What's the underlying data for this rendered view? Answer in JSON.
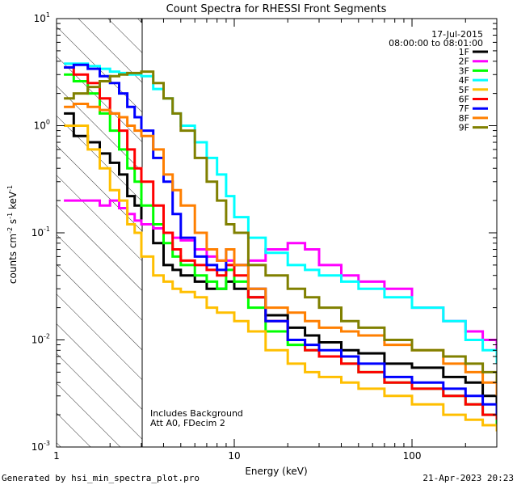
{
  "chart_data": {
    "type": "line",
    "title": "Count Spectra for RHESSI Front Segments",
    "xlabel": "Energy (keV)",
    "ylabel": "counts cm^-2 s^-1 keV^-1",
    "ylabel_parts": {
      "base1": "counts cm",
      "exp1": "-2",
      "base2": " s",
      "exp2": "-1",
      "base3": " keV",
      "exp3": "-1"
    },
    "xscale": "log",
    "yscale": "log",
    "xlim": [
      1,
      300
    ],
    "ylim": [
      0.001,
      10
    ],
    "x_ticks": [
      {
        "value": 1,
        "label": "1"
      },
      {
        "value": 10,
        "label": "10"
      },
      {
        "value": 100,
        "label": "100"
      }
    ],
    "y_ticks": [
      {
        "value": 0.001,
        "base": "10",
        "exp": "-3"
      },
      {
        "value": 0.01,
        "base": "10",
        "exp": "-2"
      },
      {
        "value": 0.1,
        "base": "10",
        "exp": "-1"
      },
      {
        "value": 1,
        "base": "10",
        "exp": "0"
      },
      {
        "value": 10,
        "base": "10",
        "exp": "1"
      }
    ],
    "excluded_region_max_keV": 3,
    "date_label": "17-Jul-2015",
    "time_label": "08:00:00 to 08:01:00",
    "annotations": [
      "Includes Background",
      "Att A0, FDecim 2"
    ],
    "x": [
      1.1,
      1.25,
      1.5,
      1.75,
      2,
      2.25,
      2.5,
      2.75,
      3,
      3.5,
      4,
      4.5,
      5,
      6,
      7,
      8,
      9,
      10,
      12,
      15,
      20,
      25,
      30,
      40,
      50,
      70,
      100,
      150,
      200,
      250,
      300
    ],
    "series": [
      {
        "name": "1F",
        "color": "#000000",
        "values": [
          1.3,
          0.8,
          0.7,
          0.55,
          0.45,
          0.35,
          0.22,
          0.18,
          0.12,
          0.08,
          0.05,
          0.045,
          0.04,
          0.035,
          0.03,
          0.03,
          0.035,
          0.03,
          0.025,
          0.017,
          0.013,
          0.011,
          0.0095,
          0.008,
          0.0075,
          0.006,
          0.0055,
          0.0045,
          0.004,
          0.003,
          0.0018
        ]
      },
      {
        "name": "2F",
        "color": "#ff00ff",
        "values": [
          0.2,
          0.2,
          0.2,
          0.18,
          0.2,
          0.17,
          0.15,
          0.13,
          0.12,
          0.11,
          0.1,
          0.09,
          0.085,
          0.07,
          0.06,
          0.055,
          0.055,
          0.05,
          0.055,
          0.07,
          0.08,
          0.07,
          0.05,
          0.04,
          0.035,
          0.03,
          0.02,
          0.015,
          0.012,
          0.01,
          0.008
        ]
      },
      {
        "name": "3F",
        "color": "#00ff00",
        "values": [
          3.0,
          2.6,
          2.0,
          1.3,
          0.9,
          0.6,
          0.4,
          0.3,
          0.18,
          0.12,
          0.08,
          0.06,
          0.05,
          0.04,
          0.035,
          0.03,
          0.045,
          0.035,
          0.02,
          0.012,
          0.009,
          0.008,
          0.007,
          0.006,
          0.005,
          0.004,
          0.0035,
          0.003,
          0.0025,
          0.002,
          0.0015
        ]
      },
      {
        "name": "4F",
        "color": "#00ffff",
        "values": [
          3.8,
          3.8,
          3.6,
          3.4,
          3.2,
          3.1,
          3.0,
          3.0,
          2.9,
          2.2,
          1.8,
          1.3,
          1.0,
          0.7,
          0.5,
          0.35,
          0.22,
          0.14,
          0.09,
          0.065,
          0.05,
          0.045,
          0.04,
          0.035,
          0.03,
          0.025,
          0.02,
          0.015,
          0.01,
          0.008,
          0.006
        ]
      },
      {
        "name": "5F",
        "color": "#ffbf00",
        "values": [
          1.0,
          1.0,
          0.6,
          0.4,
          0.25,
          0.2,
          0.12,
          0.1,
          0.06,
          0.04,
          0.035,
          0.03,
          0.028,
          0.025,
          0.02,
          0.018,
          0.018,
          0.015,
          0.012,
          0.008,
          0.006,
          0.005,
          0.0045,
          0.004,
          0.0035,
          0.003,
          0.0025,
          0.002,
          0.0018,
          0.0016,
          0.0014
        ]
      },
      {
        "name": "6F",
        "color": "#ff0000",
        "values": [
          3.5,
          3.0,
          2.5,
          1.8,
          1.3,
          0.9,
          0.6,
          0.4,
          0.3,
          0.18,
          0.1,
          0.07,
          0.055,
          0.05,
          0.045,
          0.04,
          0.05,
          0.04,
          0.025,
          0.015,
          0.01,
          0.008,
          0.007,
          0.006,
          0.005,
          0.004,
          0.0035,
          0.003,
          0.0025,
          0.002,
          0.0018
        ]
      },
      {
        "name": "7F",
        "color": "#0000ff",
        "values": [
          3.5,
          3.7,
          3.4,
          2.9,
          2.5,
          2.0,
          1.5,
          1.2,
          0.9,
          0.5,
          0.3,
          0.15,
          0.09,
          0.06,
          0.05,
          0.045,
          0.07,
          0.05,
          0.03,
          0.015,
          0.01,
          0.009,
          0.008,
          0.007,
          0.006,
          0.0045,
          0.004,
          0.0035,
          0.003,
          0.0025,
          0.002
        ]
      },
      {
        "name": "8F",
        "color": "#ff7f00",
        "values": [
          1.5,
          1.6,
          1.5,
          1.4,
          1.3,
          1.2,
          1.0,
          0.9,
          0.8,
          0.6,
          0.35,
          0.25,
          0.18,
          0.1,
          0.07,
          0.055,
          0.07,
          0.05,
          0.03,
          0.02,
          0.018,
          0.015,
          0.013,
          0.012,
          0.011,
          0.009,
          0.008,
          0.006,
          0.005,
          0.004,
          0.003
        ]
      },
      {
        "name": "9F",
        "color": "#808000",
        "values": [
          1.8,
          2.0,
          2.3,
          2.6,
          2.9,
          3.0,
          3.1,
          3.1,
          3.2,
          2.5,
          1.8,
          1.3,
          0.9,
          0.5,
          0.3,
          0.2,
          0.12,
          0.1,
          0.05,
          0.04,
          0.03,
          0.025,
          0.02,
          0.015,
          0.013,
          0.01,
          0.008,
          0.007,
          0.006,
          0.005,
          0.004
        ]
      }
    ]
  },
  "footer": {
    "generated_by": "Generated by hsi_min_spectra_plot.pro",
    "timestamp": "21-Apr-2023 20:23"
  }
}
